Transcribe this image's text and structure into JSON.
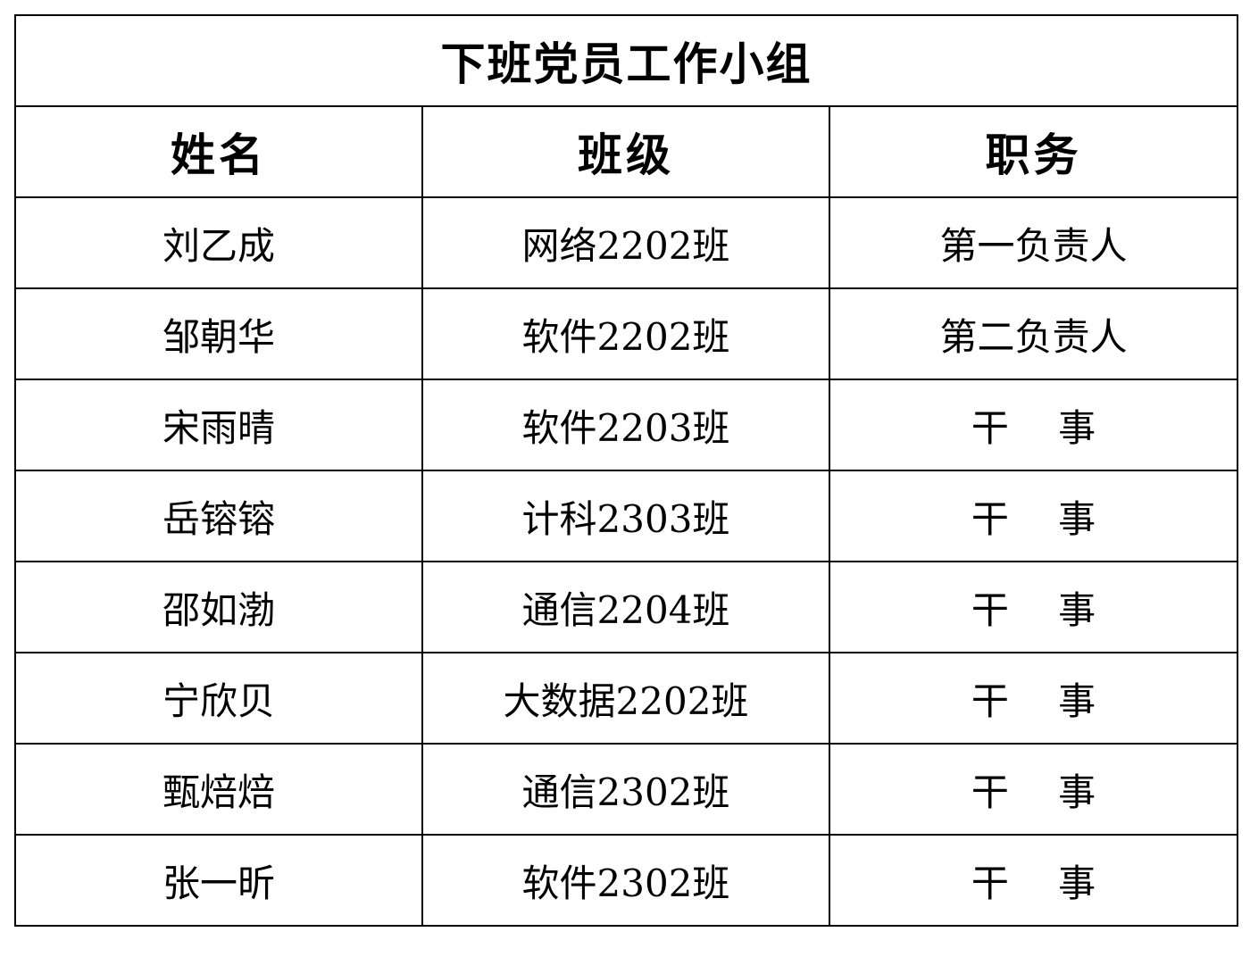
{
  "title": "下班党员工作小组",
  "headers": [
    "姓名",
    "班级",
    "职务"
  ],
  "rows": [
    {
      "name": "刘乙成",
      "class": "网络2202班",
      "role": "第一负责人"
    },
    {
      "name": "邹朝华",
      "class": "软件2202班",
      "role": "第二负责人"
    },
    {
      "name": "宋雨晴",
      "class": "软件2203班",
      "role": "干　 事"
    },
    {
      "name": "岳镕镕",
      "class": "计科2303班",
      "role": "干　 事"
    },
    {
      "name": "邵如渤",
      "class": "通信2204班",
      "role": "干　 事"
    },
    {
      "name": "宁欣贝",
      "class": "大数据2202班",
      "role": "干　 事"
    },
    {
      "name": "甄焙焙",
      "class": "通信2302班",
      "role": "干　 事"
    },
    {
      "name": "张一昕",
      "class": "软件2302班",
      "role": "干　 事"
    }
  ]
}
